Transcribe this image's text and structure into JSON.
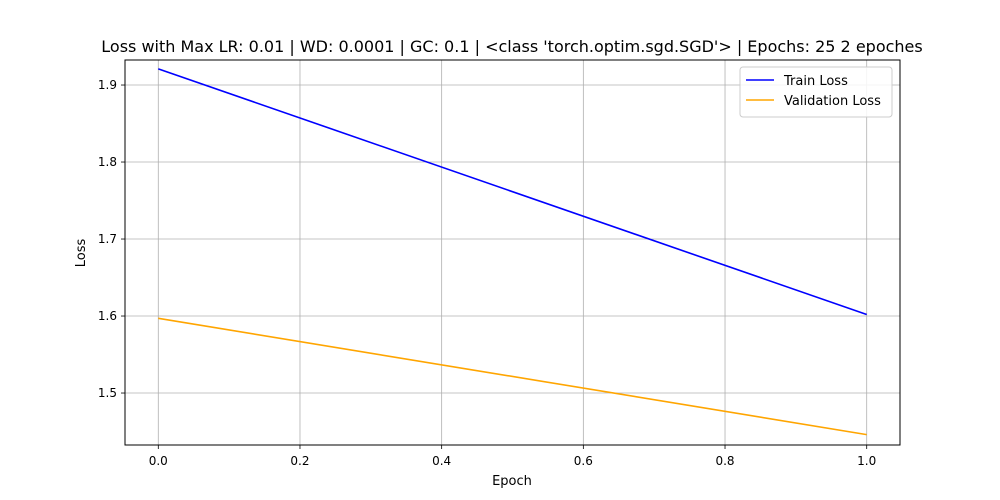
{
  "chart_data": {
    "type": "line",
    "title": "Loss with Max LR: 0.01 | WD: 0.0001 | GC: 0.1 | <class 'torch.optim.sgd.SGD'> | Epochs: 25 2 epoches",
    "xlabel": "Epoch",
    "ylabel": "Loss",
    "x": [
      0.0,
      1.0
    ],
    "xlim": [
      -0.047,
      1.047
    ],
    "ylim": [
      1.4325,
      1.9325
    ],
    "xticks": [
      0.0,
      0.2,
      0.4,
      0.6,
      0.8,
      1.0
    ],
    "xtick_labels": [
      "0.0",
      "0.2",
      "0.4",
      "0.6",
      "0.8",
      "1.0"
    ],
    "yticks": [
      1.5,
      1.6,
      1.7,
      1.8,
      1.9
    ],
    "ytick_labels": [
      "1.5",
      "1.6",
      "1.7",
      "1.8",
      "1.9"
    ],
    "grid": true,
    "legend_position": "top-right",
    "series": [
      {
        "name": "Train Loss",
        "color": "#0000ff",
        "values": [
          1.921,
          1.602
        ]
      },
      {
        "name": "Validation Loss",
        "color": "#ffa500",
        "values": [
          1.597,
          1.446
        ]
      }
    ]
  }
}
